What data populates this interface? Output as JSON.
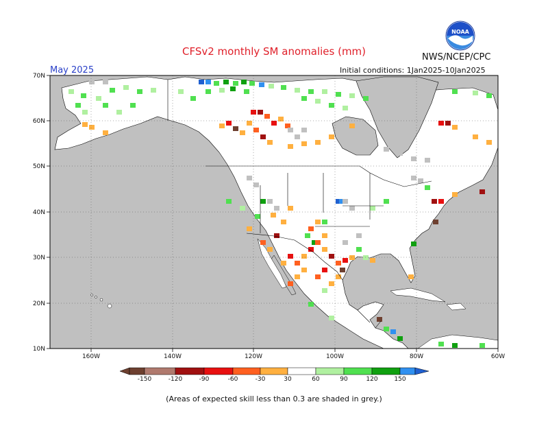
{
  "title": "CFSv2 monthly SM anomalies (mm)",
  "agency": "NWS/NCEP/CPC",
  "logo_text": "NOAA",
  "valid_month": "May 2025",
  "initial_conditions": "Initial conditions: 1Jan2025-10Jan2025",
  "footnote": "(Areas of expected skill less than 0.3 are shaded in grey.)",
  "map": {
    "lat_labels": [
      "70N",
      "60N",
      "50N",
      "40N",
      "30N",
      "20N",
      "10N"
    ],
    "lon_labels": [
      "160W",
      "140W",
      "120W",
      "100W",
      "80W",
      "60W"
    ],
    "lat_range": [
      10,
      70
    ],
    "lon_range": [
      -170,
      -60
    ],
    "no_skill_color": "#c0c0c0",
    "ocean_color": "#c0c0c0"
  },
  "colorbar": {
    "levels": [
      "-150",
      "-120",
      "-90",
      "-60",
      "-30",
      "30",
      "60",
      "90",
      "120",
      "150"
    ],
    "colors": [
      "#6e4030",
      "#b07a6e",
      "#a01010",
      "#e81010",
      "#ff6020",
      "#ffb040",
      "#ffffff",
      "#b0f0a0",
      "#50e050",
      "#10a010",
      "#3090f0",
      "#2060d0"
    ]
  },
  "colors": {
    "title": "#e0202a",
    "month": "#2a40c8"
  }
}
